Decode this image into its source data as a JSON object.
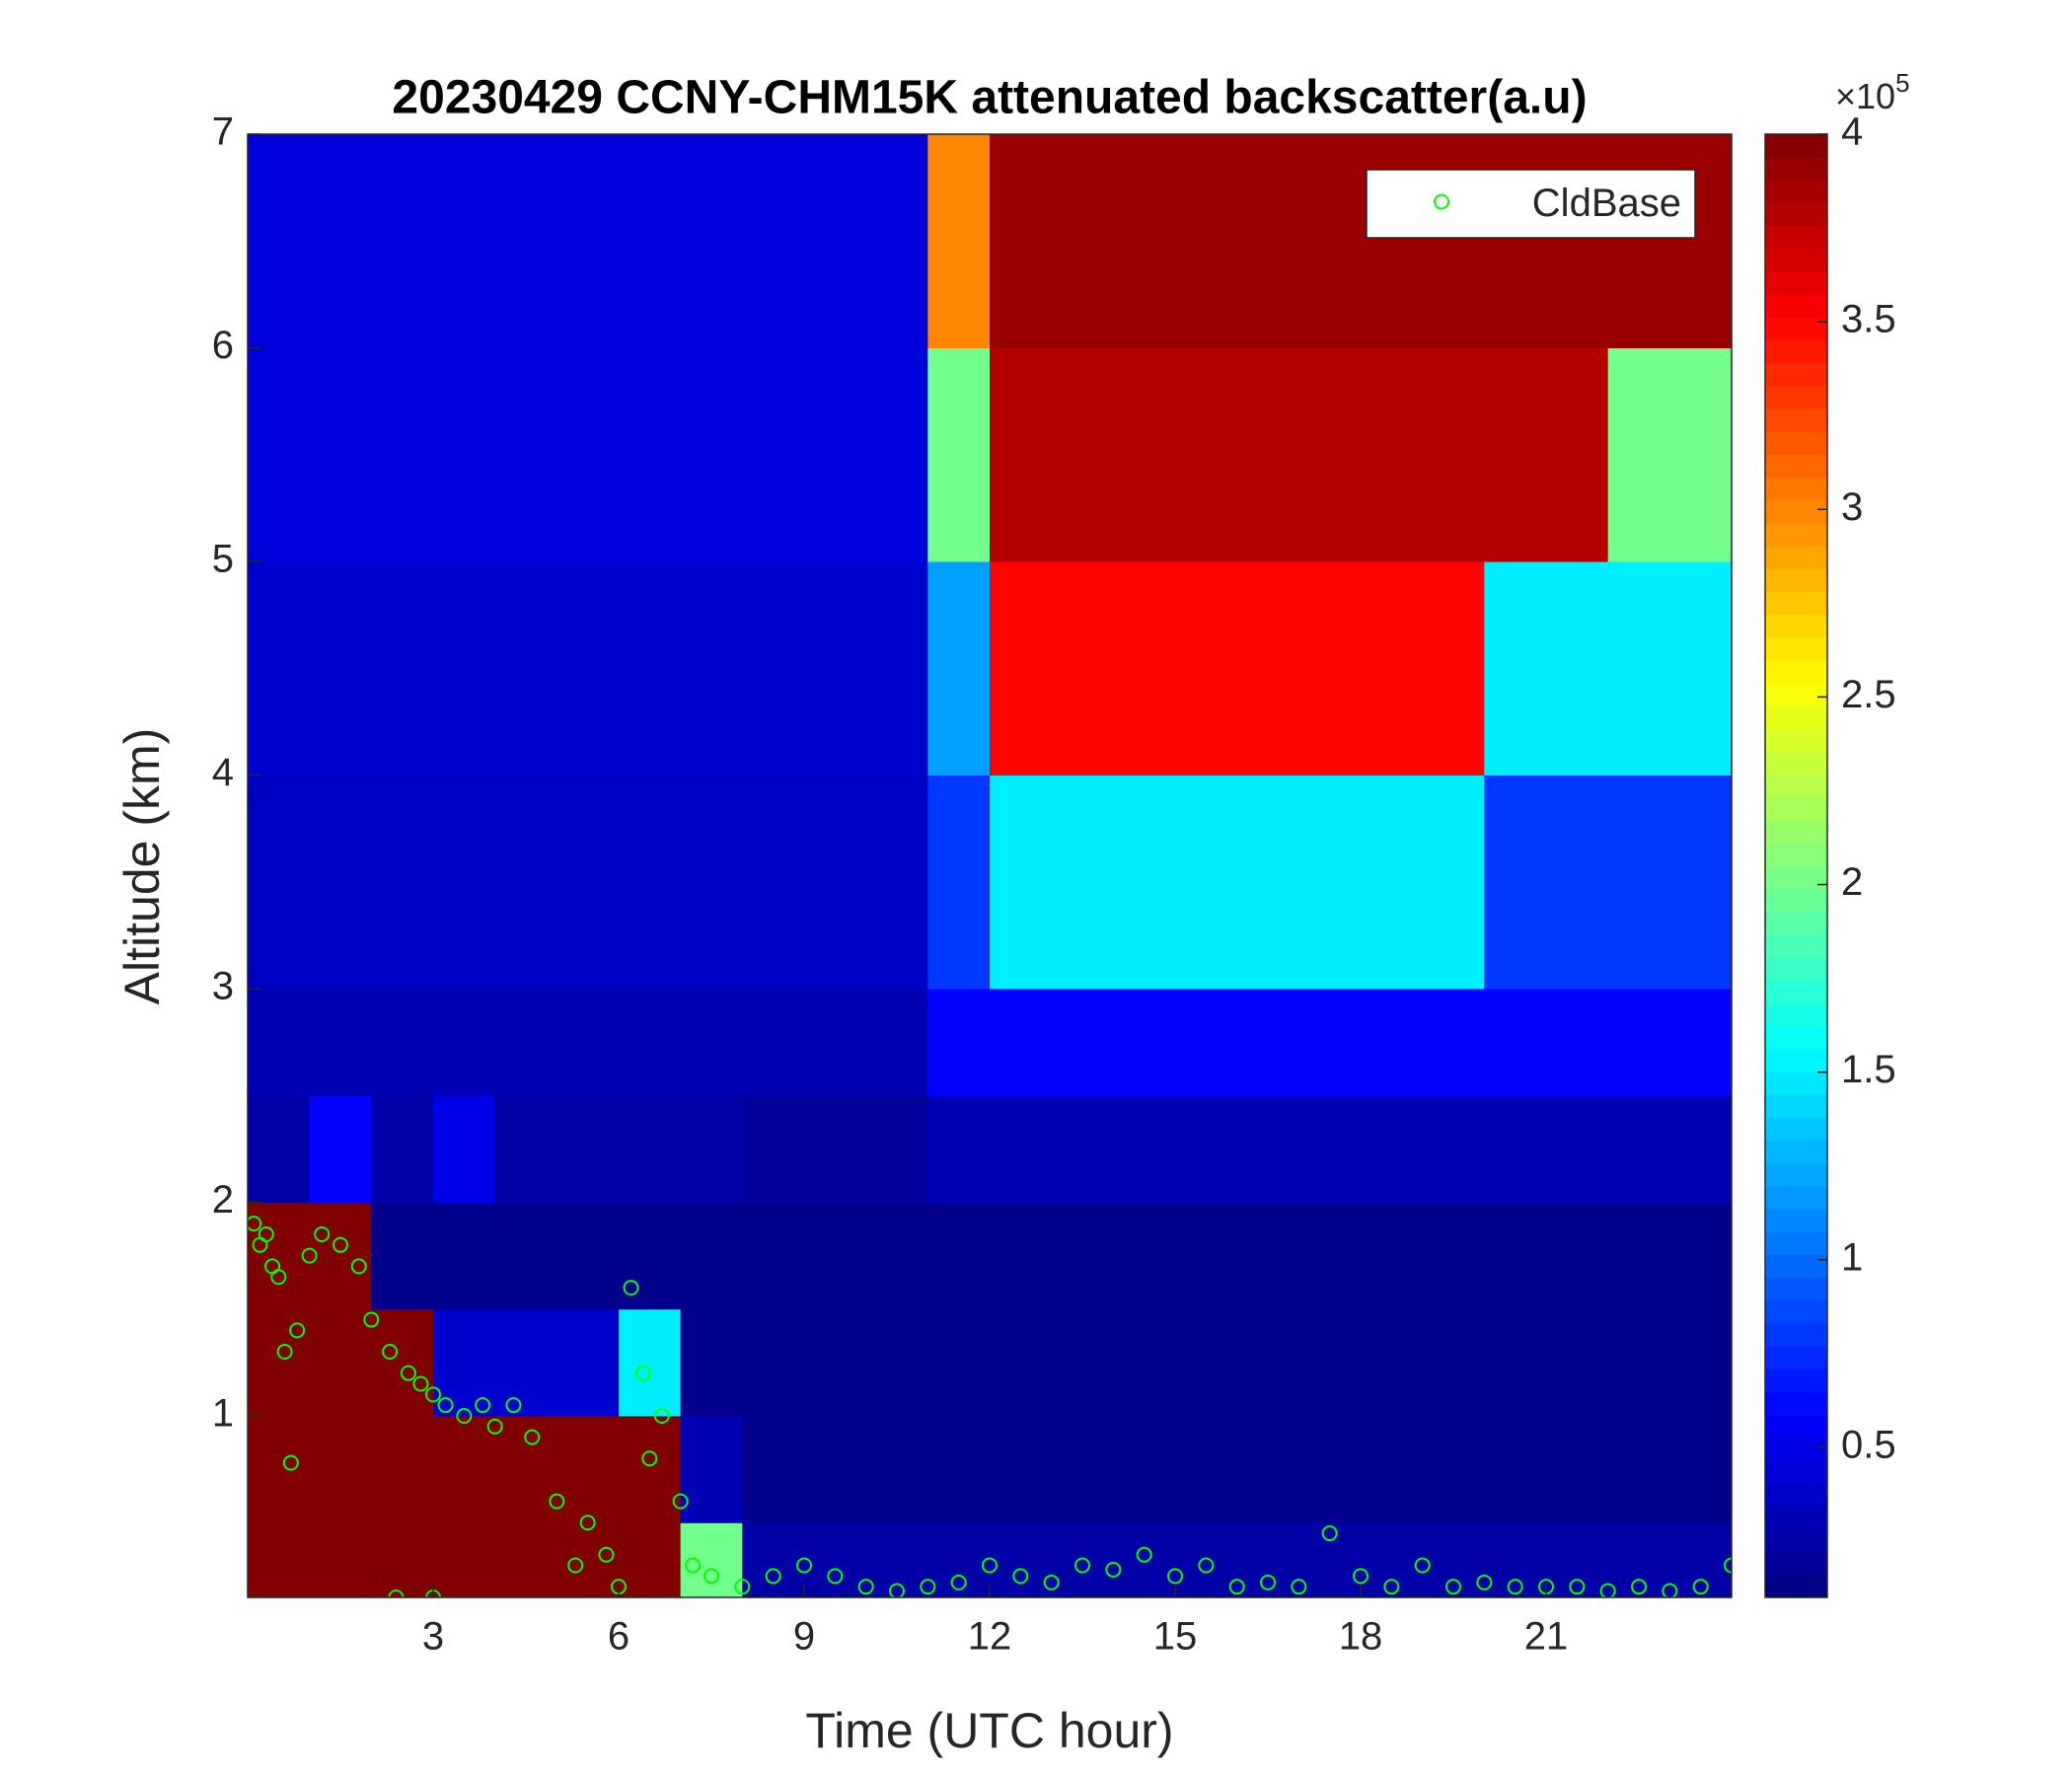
{
  "chart_data": {
    "type": "heatmap",
    "title": "20230429 CCNY-CHM15K attenuated backscatter(a.u)",
    "xlabel": "Time (UTC hour)",
    "ylabel": "Altitude (km)",
    "xlim": [
      0,
      24
    ],
    "ylim": [
      0.15,
      7
    ],
    "xticks": [
      3,
      6,
      9,
      12,
      15,
      18,
      21
    ],
    "yticks": [
      1,
      2,
      3,
      4,
      5,
      6,
      7
    ],
    "colormap": "jet",
    "clim": [
      0.1,
      4
    ],
    "cticks": [
      0.5,
      1,
      1.5,
      2,
      2.5,
      3,
      3.5,
      4
    ],
    "cmultiplier": "×10",
    "cexponent": "5",
    "x_edges": [
      0,
      1,
      2,
      3,
      4,
      5,
      6,
      7,
      8,
      9,
      10,
      11,
      12,
      13,
      14,
      15,
      16,
      17,
      18,
      19,
      20,
      21,
      22,
      23,
      24
    ],
    "y_edges": [
      0.15,
      0.5,
      1,
      1.5,
      2,
      2.5,
      3,
      4,
      5,
      6,
      7
    ],
    "values": [
      [
        4,
        4,
        4,
        4,
        4,
        4,
        4,
        2,
        0.25,
        0.25,
        0.25,
        0.25,
        0.25,
        0.25,
        0.25,
        0.25,
        0.25,
        0.25,
        0.25,
        0.25,
        0.25,
        0.25,
        0.25,
        0.25
      ],
      [
        4,
        4,
        4,
        4,
        4,
        4,
        4,
        0.3,
        0.15,
        0.15,
        0.15,
        0.15,
        0.15,
        0.15,
        0.15,
        0.15,
        0.15,
        0.15,
        0.15,
        0.15,
        0.15,
        0.15,
        0.15,
        0.15
      ],
      [
        4,
        4,
        4,
        0.4,
        0.4,
        0.4,
        1.5,
        0.15,
        0.15,
        0.15,
        0.15,
        0.15,
        0.15,
        0.15,
        0.15,
        0.15,
        0.15,
        0.15,
        0.15,
        0.15,
        0.15,
        0.15,
        0.15,
        0.15
      ],
      [
        4,
        4,
        0.15,
        0.15,
        0.15,
        0.15,
        0.15,
        0.15,
        0.15,
        0.15,
        0.15,
        0.15,
        0.15,
        0.15,
        0.15,
        0.15,
        0.15,
        0.15,
        0.15,
        0.15,
        0.15,
        0.15,
        0.15,
        0.15
      ],
      [
        0.25,
        0.6,
        0.25,
        0.5,
        0.25,
        0.25,
        0.25,
        0.25,
        0.2,
        0.2,
        0.2,
        0.3,
        0.3,
        0.3,
        0.3,
        0.3,
        0.3,
        0.3,
        0.3,
        0.3,
        0.3,
        0.3,
        0.3,
        0.3
      ],
      [
        0.3,
        0.3,
        0.3,
        0.3,
        0.3,
        0.3,
        0.3,
        0.3,
        0.3,
        0.3,
        0.3,
        0.6,
        0.6,
        0.6,
        0.6,
        0.6,
        0.6,
        0.6,
        0.6,
        0.6,
        0.6,
        0.6,
        0.6,
        0.6
      ],
      [
        0.35,
        0.35,
        0.35,
        0.35,
        0.35,
        0.35,
        0.35,
        0.35,
        0.35,
        0.35,
        0.35,
        0.8,
        1.5,
        1.5,
        1.5,
        1.5,
        1.5,
        1.5,
        1.5,
        1.5,
        0.8,
        0.8,
        0.8,
        0.8
      ],
      [
        0.4,
        0.4,
        0.4,
        0.4,
        0.4,
        0.4,
        0.4,
        0.4,
        0.4,
        0.4,
        0.4,
        1.2,
        3.5,
        3.5,
        3.5,
        3.5,
        3.5,
        3.5,
        3.5,
        3.5,
        1.5,
        1.5,
        1.5,
        1.5
      ],
      [
        0.45,
        0.45,
        0.45,
        0.45,
        0.45,
        0.45,
        0.45,
        0.45,
        0.45,
        0.45,
        0.45,
        2,
        3.8,
        3.8,
        3.8,
        3.8,
        3.8,
        3.8,
        3.8,
        3.8,
        3.8,
        3.8,
        2,
        2
      ],
      [
        0.45,
        0.45,
        0.45,
        0.45,
        0.45,
        0.45,
        0.45,
        0.45,
        0.45,
        0.45,
        0.45,
        3,
        3.9,
        3.9,
        3.9,
        3.9,
        3.9,
        3.9,
        3.9,
        3.9,
        3.9,
        3.9,
        3.9,
        3.9
      ]
    ],
    "legend": "northeast",
    "overlay": {
      "type": "scatter",
      "name": "CldBase",
      "color": "#00ff00",
      "x": [
        0.1,
        0.2,
        0.3,
        0.4,
        0.5,
        0.6,
        0.7,
        0.8,
        1,
        1.2,
        1.5,
        1.8,
        2,
        2.3,
        2.4,
        2.6,
        2.8,
        3,
        3,
        3.2,
        3.5,
        3.8,
        4,
        4.3,
        4.6,
        5,
        5.3,
        5.5,
        5.8,
        6,
        6.2,
        6.4,
        6.5,
        6.7,
        7,
        7.2,
        7.5,
        8,
        8.5,
        9,
        9.5,
        10,
        10.5,
        11,
        11.5,
        12,
        12.5,
        13,
        13.5,
        14,
        14.5,
        15,
        15.5,
        16,
        16.5,
        17,
        17.5,
        18,
        18.5,
        19,
        19.5,
        20,
        20.5,
        21,
        21.5,
        22,
        22.5,
        23,
        23.5,
        24
      ],
      "y": [
        1.9,
        1.8,
        1.85,
        1.7,
        1.65,
        1.3,
        0.78,
        1.4,
        1.75,
        1.85,
        1.8,
        1.7,
        1.45,
        1.3,
        0.15,
        1.2,
        1.15,
        1.1,
        0.15,
        1.05,
        1,
        1.05,
        0.95,
        1.05,
        0.9,
        0.6,
        0.3,
        0.5,
        0.35,
        0.2,
        1.6,
        1.2,
        0.8,
        1,
        0.6,
        0.3,
        0.25,
        0.2,
        0.25,
        0.3,
        0.25,
        0.2,
        0.18,
        0.2,
        0.22,
        0.3,
        0.25,
        0.22,
        0.3,
        0.28,
        0.35,
        0.25,
        0.3,
        0.2,
        0.22,
        0.2,
        0.45,
        0.25,
        0.2,
        0.3,
        0.2,
        0.22,
        0.2,
        0.2,
        0.2,
        0.18,
        0.2,
        0.18,
        0.2,
        0.3
      ]
    }
  }
}
